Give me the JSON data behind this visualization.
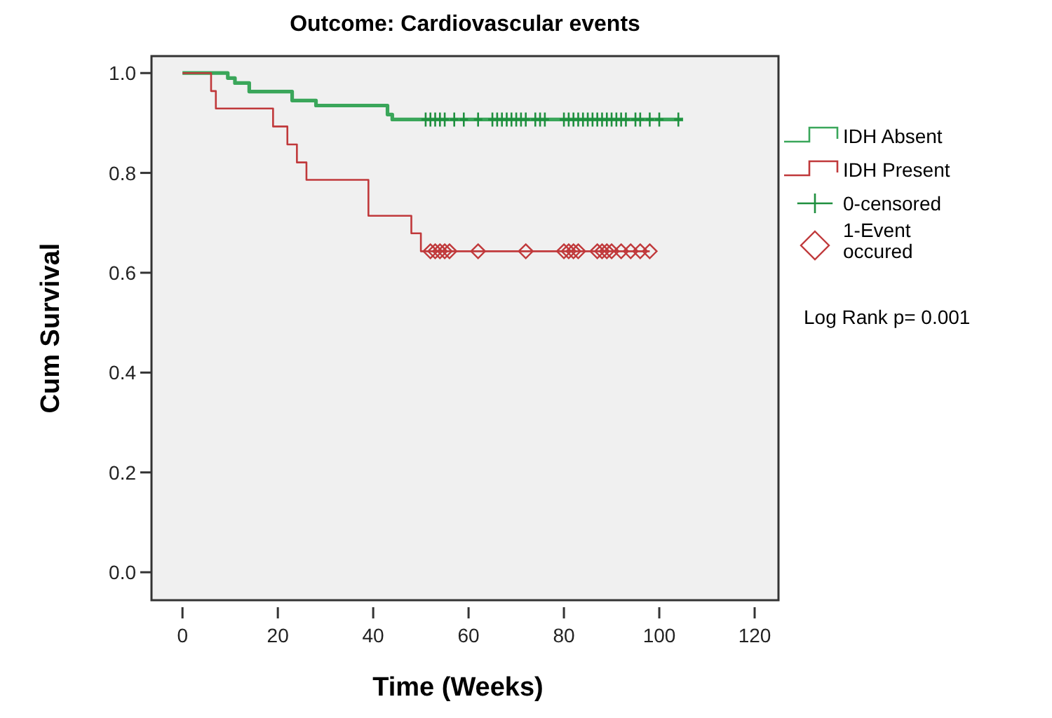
{
  "chart_data": {
    "type": "step",
    "title": "Outcome: Cardiovascular events",
    "xlabel": "Time (Weeks)",
    "ylabel": "Cum Survival",
    "xlim": [
      -6.5,
      125
    ],
    "xticks": [
      0,
      20,
      40,
      60,
      80,
      100,
      120
    ],
    "ylim": [
      -0.056,
      1.034
    ],
    "yticks": [
      {
        "value": 0,
        "label": "0.0"
      },
      {
        "value": 0.2,
        "label": "0.2"
      },
      {
        "value": 0.4,
        "label": "0.4"
      },
      {
        "value": 0.6,
        "label": "0.6"
      },
      {
        "value": 0.8,
        "label": "0.8"
      },
      {
        "value": 1,
        "label": "1.0"
      }
    ],
    "grid": false,
    "legend": "right",
    "series": [
      {
        "name": "IDH Absent",
        "color": "#3aa65a",
        "marker": "none",
        "x": [
          0,
          9.5,
          11,
          14,
          23,
          28,
          43,
          44,
          105
        ],
        "values": [
          1,
          0.99,
          0.98,
          0.963,
          0.945,
          0.935,
          0.917,
          0.907,
          0.907
        ]
      },
      {
        "name": "IDH Present",
        "color": "#c0393b",
        "marker": "none",
        "x": [
          0,
          6,
          7,
          19,
          22,
          24,
          26,
          39,
          48,
          50,
          98
        ],
        "values": [
          1,
          0.964,
          0.929,
          0.893,
          0.857,
          0.821,
          0.786,
          0.714,
          0.679,
          0.643,
          0.643
        ]
      },
      {
        "name": "0-censored",
        "type": "scatter",
        "color": "#1e8f3e",
        "marker": "cross",
        "x": [
          51,
          52,
          53,
          54,
          55,
          57,
          59,
          62,
          65,
          66,
          67,
          68,
          69,
          70,
          71,
          72,
          74,
          75,
          76,
          80,
          81,
          82,
          83,
          84,
          85,
          86,
          87,
          88,
          89,
          90,
          91,
          92,
          93,
          95,
          96,
          98,
          100,
          104
        ],
        "values": [
          0.907,
          0.907,
          0.907,
          0.907,
          0.907,
          0.907,
          0.907,
          0.907,
          0.907,
          0.907,
          0.907,
          0.907,
          0.907,
          0.907,
          0.907,
          0.907,
          0.907,
          0.907,
          0.907,
          0.907,
          0.907,
          0.907,
          0.907,
          0.907,
          0.907,
          0.907,
          0.907,
          0.907,
          0.907,
          0.907,
          0.907,
          0.907,
          0.907,
          0.907,
          0.907,
          0.907,
          0.907,
          0.907
        ]
      },
      {
        "name": "1-Event occured",
        "type": "scatter",
        "color": "#c0393b",
        "marker": "diamond",
        "x": [
          52,
          53,
          54,
          55,
          56,
          62,
          72,
          80,
          81,
          82,
          83,
          87,
          88,
          89,
          90,
          92,
          94,
          96,
          98
        ],
        "values": [
          0.643,
          0.643,
          0.643,
          0.643,
          0.643,
          0.643,
          0.643,
          0.643,
          0.643,
          0.643,
          0.643,
          0.643,
          0.643,
          0.643,
          0.643,
          0.643,
          0.643,
          0.643,
          0.643
        ]
      }
    ],
    "annotations": [
      "Log Rank p= 0.001"
    ]
  }
}
